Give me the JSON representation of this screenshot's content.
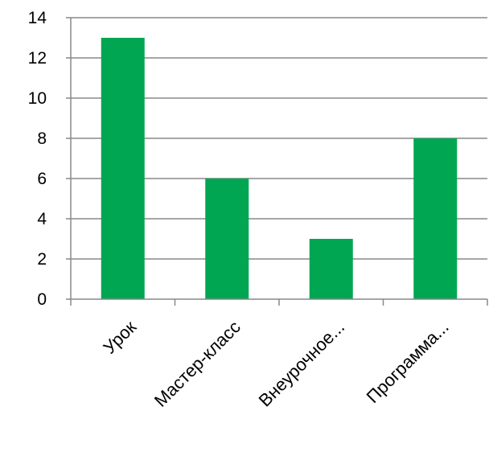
{
  "chart_data": {
    "type": "bar",
    "categories": [
      "Урок",
      "Мастер-класс",
      "Внеурочное...",
      "Программа..."
    ],
    "values": [
      13,
      6,
      3,
      8
    ],
    "ylim": [
      0,
      14
    ],
    "yticks": [
      0,
      2,
      4,
      6,
      8,
      10,
      12,
      14
    ],
    "grid": true,
    "legend": "none",
    "bar_color": "#00A651",
    "grid_color": "#888888",
    "axis_color": "#888888"
  }
}
